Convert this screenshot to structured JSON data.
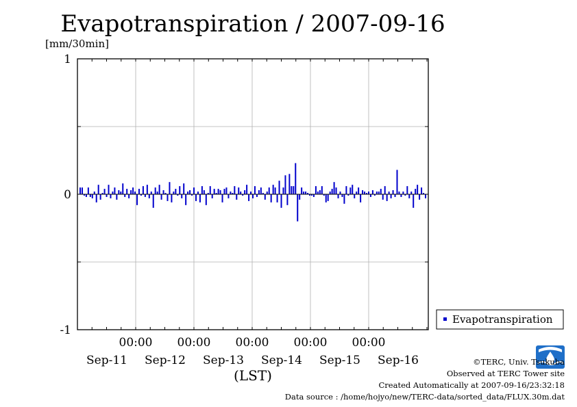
{
  "chart_data": {
    "type": "bar",
    "title": "Evapotranspiration / 2007-09-16",
    "ylabel": "[mm/30min]",
    "xlabel": "(LST)",
    "ylim": [
      -1,
      1
    ],
    "yticks": [
      "1",
      "0",
      "-1"
    ],
    "grid": true,
    "legend_position": "right",
    "x_time_ticks": [
      "00:00",
      "00:00",
      "00:00",
      "00:00",
      "00:00"
    ],
    "x_date_labels": [
      "Sep-11",
      "Sep-12",
      "Sep-13",
      "Sep-14",
      "Sep-15",
      "Sep-16"
    ],
    "series": [
      {
        "name": "Evapotranspiration",
        "color": "#0000cc",
        "values": [
          0.05,
          0.05,
          -0.01,
          -0.02,
          0.05,
          -0.02,
          -0.03,
          0.02,
          -0.06,
          0.07,
          -0.04,
          0.01,
          0.04,
          -0.02,
          0.07,
          -0.03,
          0.02,
          0.05,
          -0.04,
          0.03,
          0.02,
          0.08,
          -0.02,
          0.04,
          -0.03,
          0.03,
          0.05,
          0.02,
          -0.08,
          0.04,
          -0.01,
          0.06,
          -0.02,
          0.07,
          -0.03,
          0.02,
          -0.1,
          0.05,
          0.02,
          0.07,
          -0.04,
          0.03,
          0.01,
          -0.05,
          0.09,
          -0.06,
          0.02,
          0.04,
          -0.01,
          0.06,
          -0.03,
          0.08,
          -0.08,
          0.02,
          0.03,
          -0.01,
          0.05,
          -0.05,
          0.02,
          -0.06,
          0.06,
          0.03,
          -0.08,
          0.01,
          0.06,
          -0.03,
          0.04,
          0.01,
          0.04,
          0.03,
          -0.06,
          0.04,
          0.05,
          -0.03,
          0.02,
          0.01,
          0.06,
          -0.04,
          0.05,
          0.02,
          -0.01,
          0.03,
          0.07,
          -0.05,
          0.02,
          -0.03,
          0.06,
          -0.02,
          0.03,
          0.05,
          0.01,
          -0.04,
          0.02,
          0.05,
          -0.06,
          0.07,
          0.05,
          -0.06,
          0.1,
          -0.1,
          0.05,
          0.14,
          -0.08,
          0.15,
          0.06,
          0.06,
          0.23,
          -0.2,
          -0.04,
          0.05,
          0.02,
          0.02,
          0.01,
          -0.01,
          -0.01,
          -0.02,
          0.06,
          0.02,
          0.03,
          0.06,
          -0.01,
          -0.06,
          -0.05,
          0.02,
          0.04,
          0.09,
          0.05,
          -0.03,
          0.02,
          -0.02,
          -0.07,
          0.06,
          -0.01,
          0.05,
          0.07,
          -0.03,
          0.02,
          0.05,
          -0.06,
          0.03,
          0.02,
          0.01,
          0.02,
          -0.02,
          0.03,
          -0.01,
          0.02,
          0.02,
          0.04,
          -0.04,
          0.06,
          -0.05,
          0.02,
          -0.03,
          0.03,
          -0.02,
          0.18,
          0.02,
          -0.02,
          0.02,
          -0.01,
          0.06,
          -0.03,
          0.02,
          -0.1,
          0.04,
          0.07,
          -0.04,
          0.05,
          0.01,
          -0.03
        ]
      }
    ]
  },
  "credits": {
    "copyright": "©TERC, Univ. Tsukuba",
    "observed": "Observed at TERC Tower site",
    "created": "Created Automatically at 2007-09-16/23:32:18",
    "source": "Data source : /home/hojyo/new/TERC-data/sorted_data/FLUX.30m.dat"
  },
  "logo": {
    "name": "terc-logo",
    "text": "TERC",
    "color": "#1f6fc8"
  }
}
